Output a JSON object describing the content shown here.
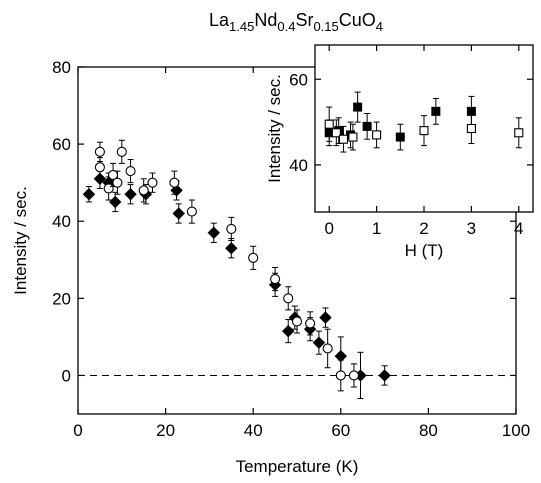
{
  "chart_data": [
    {
      "type": "scatter",
      "title_parts": [
        {
          "text": "La",
          "sub": false
        },
        {
          "text": "1.45",
          "sub": true
        },
        {
          "text": "Nd",
          "sub": false
        },
        {
          "text": "0.4",
          "sub": true
        },
        {
          "text": "Sr",
          "sub": false
        },
        {
          "text": "0.15",
          "sub": true
        },
        {
          "text": "CuO",
          "sub": false
        },
        {
          "text": "4",
          "sub": true
        }
      ],
      "xlabel": "Temperature (K)",
      "ylabel": "Intensity / sec.",
      "xlim": [
        0,
        100
      ],
      "ylim": [
        -10,
        80
      ],
      "xticks": [
        0,
        20,
        40,
        60,
        80,
        100
      ],
      "yticks": [
        0,
        20,
        40,
        60,
        80
      ],
      "reference_line": {
        "y": 0,
        "style": "dashed"
      },
      "series": [
        {
          "marker": "diamond-filled",
          "points": [
            [
              2.5,
              47,
              2
            ],
            [
              5,
              51,
              2.5
            ],
            [
              7,
              50,
              2.5
            ],
            [
              8.5,
              45,
              2.5
            ],
            [
              12,
              47,
              2.5
            ],
            [
              15.5,
              47,
              2.5
            ],
            [
              22.5,
              48,
              2.5
            ],
            [
              23,
              42,
              2.5
            ],
            [
              31,
              37,
              2.5
            ],
            [
              35,
              33,
              2.5
            ],
            [
              45,
              23.5,
              3
            ],
            [
              48,
              11.5,
              3
            ],
            [
              49.5,
              15,
              3
            ],
            [
              53,
              12,
              3
            ],
            [
              55,
              8.5,
              3
            ],
            [
              56.5,
              15,
              2.5
            ],
            [
              60,
              5,
              5
            ],
            [
              64.5,
              0,
              6
            ],
            [
              70,
              0,
              2.5
            ]
          ]
        },
        {
          "marker": "circle-open",
          "points": [
            [
              5,
              54,
              2.5
            ],
            [
              5,
              58,
              2.5
            ],
            [
              7,
              48.5,
              3
            ],
            [
              8,
              52,
              3
            ],
            [
              9,
              50,
              3
            ],
            [
              10,
              58,
              3
            ],
            [
              12,
              53,
              3
            ],
            [
              15,
              48,
              3
            ],
            [
              17,
              50,
              2.5
            ],
            [
              22,
              50,
              3
            ],
            [
              26,
              42.5,
              3
            ],
            [
              35,
              38,
              3
            ],
            [
              40,
              30.5,
              3
            ],
            [
              45,
              25,
              3
            ],
            [
              48,
              20,
              3
            ],
            [
              50,
              14,
              3
            ],
            [
              53,
              13.5,
              3
            ],
            [
              57,
              7,
              5
            ],
            [
              60,
              0,
              4
            ],
            [
              63,
              0,
              3
            ]
          ]
        }
      ]
    },
    {
      "type": "scatter",
      "xlabel": "H (T)",
      "ylabel": "Intensity / sec.",
      "xlim": [
        -0.3,
        4.3
      ],
      "ylim": [
        29,
        68
      ],
      "xticks": [
        0,
        1,
        2,
        3,
        4
      ],
      "yticks": [
        40,
        60
      ],
      "series": [
        {
          "marker": "square-filled",
          "points": [
            [
              0,
              47.5,
              3
            ],
            [
              0.2,
              48,
              3
            ],
            [
              0.45,
              47,
              3
            ],
            [
              0.6,
              53.5,
              3.5
            ],
            [
              0.8,
              49,
              3
            ],
            [
              1.5,
              46.5,
              3
            ],
            [
              2.25,
              52.5,
              3
            ],
            [
              3,
              52.5,
              3.5
            ]
          ]
        },
        {
          "marker": "square-open",
          "points": [
            [
              0,
              49.5,
              4
            ],
            [
              0.15,
              47.5,
              3
            ],
            [
              0.3,
              46,
              3
            ],
            [
              0.5,
              46.5,
              3
            ],
            [
              1,
              47,
              3
            ],
            [
              2,
              48,
              3.5
            ],
            [
              3,
              48.5,
              3.5
            ],
            [
              4,
              47.5,
              3.5
            ]
          ]
        }
      ]
    }
  ]
}
